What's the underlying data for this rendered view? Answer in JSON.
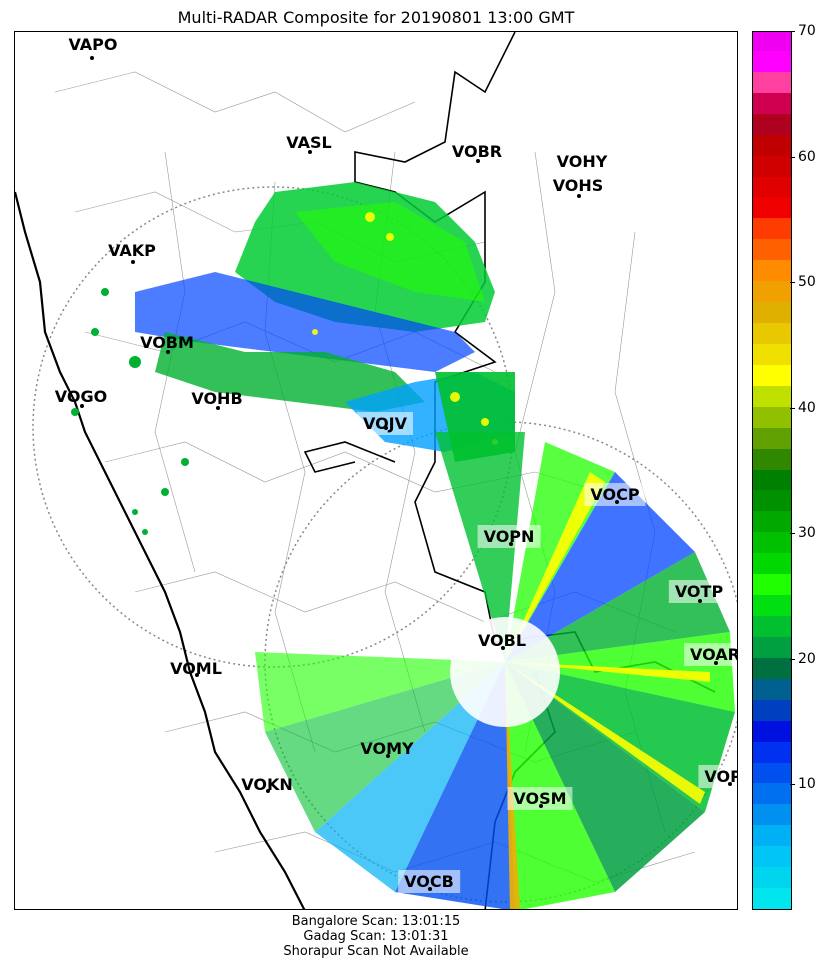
{
  "title": "Multi-RADAR Composite for 20190801 13:00 GMT",
  "stations": [
    {
      "name": "VAPO",
      "label": "VAPO",
      "boxed": false
    },
    {
      "name": "VASL",
      "label": "VASL",
      "boxed": false
    },
    {
      "name": "VOBR",
      "label": "VOBR",
      "boxed": false
    },
    {
      "name": "VOHY",
      "label": "VOHY",
      "boxed": false
    },
    {
      "name": "VOHS",
      "label": "VOHS",
      "boxed": false
    },
    {
      "name": "VAKP",
      "label": "VAKP",
      "boxed": false
    },
    {
      "name": "VOBM",
      "label": "VOBM",
      "boxed": false
    },
    {
      "name": "VOGO",
      "label": "VOGO",
      "boxed": false
    },
    {
      "name": "VOHB",
      "label": "VOHB",
      "boxed": false
    },
    {
      "name": "VOJV",
      "label": "VOJV",
      "boxed": true
    },
    {
      "name": "VOCP",
      "label": "VOCP",
      "boxed": true
    },
    {
      "name": "VOPN",
      "label": "VOPN",
      "boxed": true
    },
    {
      "name": "VOTP",
      "label": "VOTP",
      "boxed": true
    },
    {
      "name": "VOBL",
      "label": "VOBL",
      "boxed": false
    },
    {
      "name": "VOAR",
      "label": "VOAR",
      "boxed": true
    },
    {
      "name": "VOML",
      "label": "VOML",
      "boxed": false
    },
    {
      "name": "VOMY",
      "label": "VOMY",
      "boxed": false
    },
    {
      "name": "VOKN",
      "label": "VOKN",
      "boxed": false
    },
    {
      "name": "VOPC",
      "label": "VOPC",
      "boxed": true
    },
    {
      "name": "VOSM",
      "label": "VOSM",
      "boxed": true
    },
    {
      "name": "VOCB",
      "label": "VOCB",
      "boxed": true
    }
  ],
  "colorbar": {
    "min": 0,
    "max": 70,
    "ticks": [
      "10",
      "20",
      "30",
      "40",
      "50",
      "60",
      "70"
    ],
    "tick_values": [
      10,
      20,
      30,
      40,
      50,
      60,
      70
    ],
    "colors": [
      "#00e5ee",
      "#00d5f0",
      "#00c5f5",
      "#00b0f5",
      "#0090f0",
      "#0070f0",
      "#0050f0",
      "#0030f0",
      "#0010e0",
      "#0040c0",
      "#006090",
      "#007040",
      "#00a040",
      "#00c030",
      "#00e010",
      "#20ff00",
      "#00d800",
      "#00c000",
      "#00a800",
      "#009000",
      "#008000",
      "#308800",
      "#60a000",
      "#90c000",
      "#c0e000",
      "#ffff00",
      "#f0e000",
      "#e8c800",
      "#e0b000",
      "#f0a000",
      "#ff8c00",
      "#ff6000",
      "#ff3c00",
      "#f00000",
      "#e00000",
      "#d00000",
      "#c00000",
      "#b00020",
      "#d00050",
      "#ff40a0",
      "#ff00ff",
      "#f000f0"
    ]
  },
  "footer": {
    "line1": "Bangalore Scan: 13:01:15",
    "line2": "Gadag Scan: 13:01:31",
    "line3": "Shorapur Scan Not Available"
  }
}
